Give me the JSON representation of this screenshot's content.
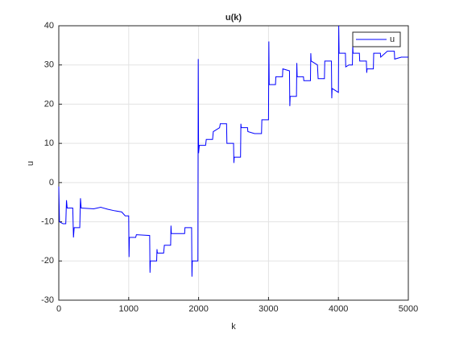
{
  "chart_data": {
    "type": "line",
    "title": "u(k)",
    "x_label": "k",
    "y_label": "u",
    "x": [
      0,
      10,
      60,
      100,
      110,
      120,
      200,
      210,
      220,
      300,
      310,
      320,
      500,
      600,
      700,
      800,
      900,
      950,
      1000,
      1005,
      1010,
      1100,
      1110,
      1300,
      1305,
      1310,
      1400,
      1405,
      1410,
      1500,
      1510,
      1600,
      1605,
      1610,
      1800,
      1805,
      1900,
      1905,
      1910,
      1990,
      1995,
      2000,
      2010,
      2100,
      2110,
      2200,
      2210,
      2300,
      2310,
      2400,
      2405,
      2500,
      2505,
      2510,
      2600,
      2605,
      2610,
      2700,
      2705,
      2800,
      2900,
      2905,
      3000,
      3005,
      3010,
      3100,
      3105,
      3200,
      3205,
      3300,
      3305,
      3310,
      3400,
      3405,
      3410,
      3500,
      3505,
      3600,
      3605,
      3610,
      3700,
      3710,
      3800,
      3805,
      3900,
      3905,
      3910,
      4000,
      4005,
      4010,
      4100,
      4105,
      4150,
      4200,
      4205,
      4210,
      4300,
      4305,
      4400,
      4405,
      4410,
      4500,
      4505,
      4600,
      4605,
      4700,
      4800,
      4805,
      4900,
      5000
    ],
    "series": [
      {
        "name": "u",
        "color": "#0000ff",
        "values": [
          -1,
          -10,
          -10.5,
          -10.5,
          -4.5,
          -6.5,
          -6.5,
          -14,
          -11.5,
          -11.5,
          -4,
          -6.5,
          -6.7,
          -6.3,
          -6.8,
          -7.2,
          -7.5,
          -8.5,
          -8.5,
          -19,
          -14,
          -14,
          -13.3,
          -13.5,
          -23,
          -20,
          -20,
          -17,
          -18,
          -18,
          -16,
          -16,
          -11,
          -13,
          -13,
          -11.5,
          -11.5,
          -24,
          -20,
          -20,
          31.5,
          7.5,
          9.5,
          9.5,
          11,
          11,
          13,
          14,
          15,
          15,
          10,
          10,
          5,
          6.5,
          6.5,
          15,
          14,
          14,
          13,
          12.5,
          12.5,
          16,
          16,
          36,
          25,
          25,
          27,
          27,
          29,
          28.5,
          19.5,
          22,
          22,
          30.5,
          27,
          27,
          26,
          26,
          33,
          31,
          30,
          26.5,
          26.5,
          31,
          31,
          21.5,
          24,
          23,
          40,
          33,
          33,
          29.5,
          30,
          30,
          35,
          33,
          33,
          31,
          31,
          28,
          29,
          29,
          33,
          33,
          32,
          33.5,
          33.5,
          31.5,
          32,
          32
        ]
      }
    ],
    "xlim": [
      0,
      5000
    ],
    "xticks": [
      0,
      1000,
      2000,
      3000,
      4000,
      5000
    ],
    "ylim": [
      -30,
      40
    ],
    "yticks": [
      -30,
      -20,
      -10,
      0,
      10,
      20,
      30,
      40
    ],
    "grid": true,
    "legend": "northeast"
  }
}
